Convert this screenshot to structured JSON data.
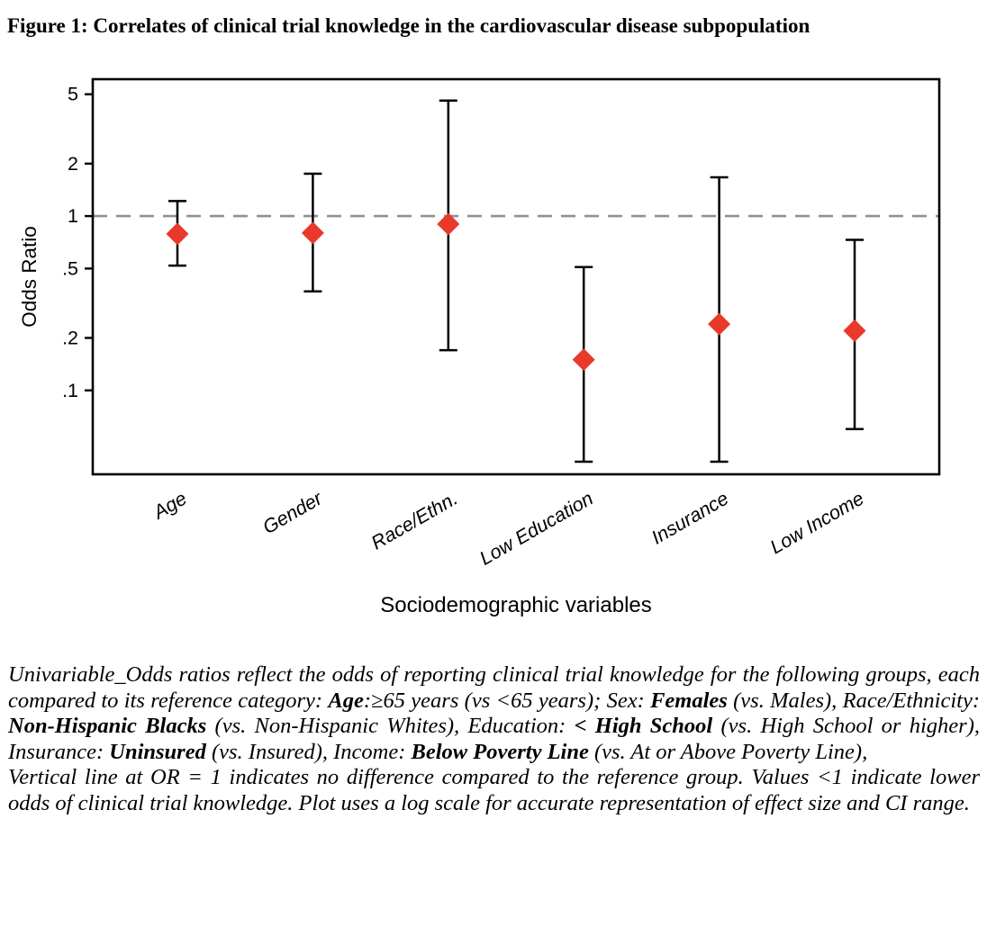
{
  "figure": {
    "title": "Figure 1: Correlates of clinical trial knowledge in the cardiovascular disease subpopulation"
  },
  "chart_data": {
    "type": "scatter",
    "subtype": "forest-plot-odds-ratios",
    "xlabel": "Sociodemographic variables",
    "ylabel": "Odds Ratio",
    "y_scale": "log",
    "ylim": [
      0.033,
      6.1
    ],
    "y_ticks": [
      {
        "value": 5,
        "label": "5"
      },
      {
        "value": 2,
        "label": "2"
      },
      {
        "value": 1,
        "label": "1"
      },
      {
        "value": 0.5,
        "label": ".5"
      },
      {
        "value": 0.2,
        "label": ".2"
      },
      {
        "value": 0.1,
        "label": ".1"
      }
    ],
    "reference_line": {
      "value": 1,
      "style": "dashed",
      "color": "#909090"
    },
    "categories": [
      "Age",
      "Gender",
      "Race/Ethn.",
      "Low Education",
      "Insurance",
      "Low Income"
    ],
    "points": [
      {
        "category": "Age",
        "or": 0.79,
        "ci_low": 0.52,
        "ci_high": 1.22
      },
      {
        "category": "Gender",
        "or": 0.8,
        "ci_low": 0.37,
        "ci_high": 1.75
      },
      {
        "category": "Race/Ethn.",
        "or": 0.9,
        "ci_low": 0.17,
        "ci_high": 4.6
      },
      {
        "category": "Low Education",
        "or": 0.15,
        "ci_low": 0.039,
        "ci_high": 0.51
      },
      {
        "category": "Insurance",
        "or": 0.24,
        "ci_low": 0.039,
        "ci_high": 1.67
      },
      {
        "category": "Low Income",
        "or": 0.22,
        "ci_low": 0.06,
        "ci_high": 0.73
      }
    ],
    "marker": {
      "shape": "diamond",
      "color": "#e8392b"
    },
    "grid": false,
    "legend": "none"
  },
  "caption": {
    "paragraphs": [
      {
        "runs": [
          {
            "t": "Univariable_Odds ratios reflect the odds of reporting clinical trial knowledge for the following groups, each compared to its reference category: ",
            "b": false
          },
          {
            "t": "Age",
            "b": true
          },
          {
            "t": ":≥65 years (vs <65 years); Sex: ",
            "b": false
          },
          {
            "t": "Females",
            "b": true
          },
          {
            "t": " (vs. Males), Race/Ethnicity: ",
            "b": false
          },
          {
            "t": "Non-Hispanic Blacks",
            "b": true
          },
          {
            "t": " (vs. Non-Hispanic Whites), Education: ",
            "b": false
          },
          {
            "t": "< High School",
            "b": true
          },
          {
            "t": " (vs. High School or higher), Insurance: ",
            "b": false
          },
          {
            "t": "Uninsured",
            "b": true
          },
          {
            "t": " (vs. Insured), Income: ",
            "b": false
          },
          {
            "t": "Below Poverty Line",
            "b": true
          },
          {
            "t": " (vs. At or Above Poverty Line),",
            "b": false
          }
        ]
      },
      {
        "runs": [
          {
            "t": "Vertical line at OR = 1 indicates no difference compared to the reference group. Values <1 indicate lower odds of clinical trial knowledge. Plot uses a log scale for accurate representation of effect size and CI range.",
            "b": false
          }
        ]
      }
    ]
  },
  "colors": {
    "marker_red": "#e8392b",
    "reference_gray": "#909090",
    "axis_black": "#000000",
    "background": "#ffffff"
  }
}
